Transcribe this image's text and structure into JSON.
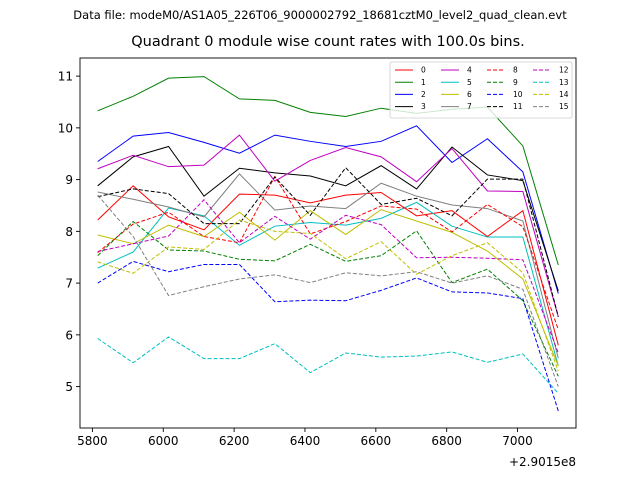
{
  "chart_data": {
    "type": "line",
    "suptitle": "Data file: modeM0/AS1A05_226T06_9000002792_18681cztM0_level2_quad_clean.evt",
    "title": "Quadrant 0 module wise count rates with 100.0s bins.",
    "xlabel": "",
    "ylabel": "",
    "x_offset_label": "+2.9015e8",
    "xlim": [
      5765,
      7165
    ],
    "ylim": [
      4.2,
      11.35
    ],
    "xticks": [
      5800,
      6000,
      6200,
      6400,
      6600,
      6800,
      7000
    ],
    "xtick_labels": [
      "5800",
      "6000",
      "6200",
      "6400",
      "6600",
      "6800",
      "7000"
    ],
    "yticks": [
      5,
      6,
      7,
      8,
      9,
      10,
      11
    ],
    "ytick_labels": [
      "5",
      "6",
      "7",
      "8",
      "9",
      "10",
      "11"
    ],
    "grid": false,
    "legend_position": "top-right",
    "x": [
      5815,
      5915,
      6015,
      6115,
      6215,
      6315,
      6415,
      6515,
      6615,
      6715,
      6815,
      6915,
      7015,
      7115
    ],
    "series": [
      {
        "name": "0",
        "color": "#ff0000",
        "dash": "solid",
        "values": [
          8.22,
          8.88,
          8.28,
          8.03,
          8.72,
          8.7,
          8.55,
          8.7,
          8.75,
          8.3,
          8.4,
          7.9,
          8.4,
          5.8
        ]
      },
      {
        "name": "1",
        "color": "#008000",
        "dash": "solid",
        "values": [
          10.33,
          10.61,
          10.96,
          10.99,
          10.56,
          10.53,
          10.3,
          10.22,
          10.38,
          10.28,
          10.36,
          10.4,
          9.65,
          7.35
        ]
      },
      {
        "name": "2",
        "color": "#0000ff",
        "dash": "solid",
        "values": [
          9.35,
          9.84,
          9.91,
          9.72,
          9.51,
          9.86,
          9.74,
          9.64,
          9.74,
          10.04,
          9.33,
          9.79,
          9.15,
          6.8
        ]
      },
      {
        "name": "3",
        "color": "#000000",
        "dash": "solid",
        "values": [
          8.88,
          9.44,
          9.64,
          8.68,
          9.22,
          9.13,
          9.07,
          8.88,
          9.27,
          8.82,
          9.63,
          9.09,
          8.98,
          6.85
        ]
      },
      {
        "name": "4",
        "color": "#bf00bf",
        "dash": "solid",
        "values": [
          9.21,
          9.47,
          9.25,
          9.28,
          9.86,
          8.97,
          9.37,
          9.62,
          9.44,
          8.96,
          9.6,
          8.78,
          8.77,
          6.35
        ]
      },
      {
        "name": "5",
        "color": "#00bfbf",
        "dash": "solid",
        "values": [
          7.29,
          7.6,
          8.45,
          8.3,
          7.73,
          8.1,
          8.17,
          8.12,
          8.25,
          8.56,
          8.1,
          7.89,
          7.89,
          5.4
        ]
      },
      {
        "name": "6",
        "color": "#bfbf00",
        "dash": "solid",
        "values": [
          7.93,
          7.76,
          8.12,
          7.9,
          8.37,
          7.83,
          8.4,
          7.94,
          8.42,
          8.2,
          7.98,
          7.62,
          7.08,
          5.4
        ]
      },
      {
        "name": "7",
        "color": "#808080",
        "dash": "solid",
        "values": [
          8.76,
          8.62,
          8.47,
          8.28,
          9.11,
          8.41,
          8.49,
          8.44,
          8.93,
          8.68,
          8.51,
          8.44,
          8.2,
          5.55
        ]
      },
      {
        "name": "8",
        "color": "#ff0000",
        "dash": "dashed",
        "values": [
          7.59,
          8.14,
          8.37,
          7.9,
          7.78,
          9.06,
          7.95,
          8.19,
          8.49,
          8.43,
          7.99,
          8.52,
          8.09,
          6.1
        ]
      },
      {
        "name": "9",
        "color": "#008000",
        "dash": "dashed",
        "values": [
          7.53,
          8.19,
          7.64,
          7.62,
          7.46,
          7.43,
          7.75,
          7.42,
          7.53,
          8.01,
          7.01,
          7.27,
          6.66,
          5.2
        ]
      },
      {
        "name": "10",
        "color": "#0000ff",
        "dash": "dashed",
        "values": [
          7.0,
          7.42,
          7.22,
          7.36,
          7.36,
          6.64,
          6.67,
          6.66,
          6.86,
          7.1,
          6.83,
          6.81,
          6.7,
          4.53
        ]
      },
      {
        "name": "11",
        "color": "#000000",
        "dash": "dashed",
        "values": [
          8.67,
          8.82,
          8.73,
          8.15,
          8.15,
          9.05,
          8.31,
          9.23,
          8.52,
          8.64,
          8.3,
          9.01,
          9.01,
          6.35
        ]
      },
      {
        "name": "12",
        "color": "#bf00bf",
        "dash": "dashed",
        "values": [
          7.61,
          7.76,
          7.91,
          8.61,
          7.78,
          8.29,
          7.85,
          8.31,
          8.13,
          7.49,
          7.5,
          7.48,
          7.45,
          5.65
        ]
      },
      {
        "name": "13",
        "color": "#00bfbf",
        "dash": "dashed",
        "values": [
          5.93,
          5.46,
          5.96,
          5.54,
          5.54,
          5.83,
          5.27,
          5.65,
          5.57,
          5.59,
          5.67,
          5.47,
          5.63,
          4.87
        ]
      },
      {
        "name": "14",
        "color": "#bfbf00",
        "dash": "dashed",
        "values": [
          7.41,
          7.19,
          7.7,
          7.65,
          8.22,
          8.0,
          7.96,
          7.47,
          7.8,
          7.17,
          7.53,
          7.78,
          7.2,
          5.3
        ]
      },
      {
        "name": "15",
        "color": "#808080",
        "dash": "dashed",
        "values": [
          8.7,
          7.9,
          6.76,
          6.93,
          7.08,
          7.16,
          7.01,
          7.2,
          7.14,
          7.22,
          7.0,
          7.14,
          6.88,
          5.0
        ]
      }
    ]
  }
}
